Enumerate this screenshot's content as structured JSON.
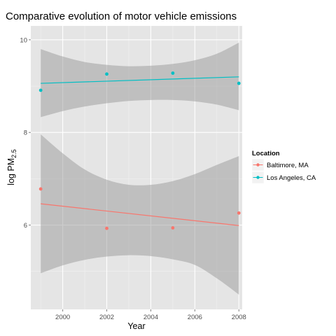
{
  "chart_data": {
    "type": "scatter",
    "title": "Comparative evolution of motor vehicle emissions",
    "xlabel": "Year",
    "ylabel_main": "log PM",
    "ylabel_sub": "2.5",
    "xlim": [
      1998.55,
      2008.15
    ],
    "ylim": [
      4.18,
      10.3
    ],
    "x_ticks": [
      2000,
      2002,
      2004,
      2006,
      2008
    ],
    "x_tick_labels": [
      "2000",
      "2002",
      "2004",
      "2006",
      "2008"
    ],
    "y_ticks": [
      6,
      8,
      10
    ],
    "y_tick_labels": [
      "6",
      "8",
      "10"
    ],
    "grid": true,
    "legend": {
      "title": "Location",
      "position": "right",
      "entries": [
        "Baltimore, MA",
        "Los Angeles, CA"
      ]
    },
    "series": [
      {
        "name": "Baltimore, MA",
        "color": "#f8766d",
        "x": [
          1999,
          2002,
          2005,
          2008
        ],
        "y": [
          6.78,
          5.93,
          5.94,
          6.26
        ],
        "fit": {
          "x": [
            1999,
            2008
          ],
          "y": [
            6.46,
            5.99
          ]
        },
        "band": {
          "x": [
            1999,
            2000,
            2001,
            2002,
            2003,
            2004,
            2005,
            2006,
            2007,
            2008
          ],
          "upper": [
            7.96,
            7.55,
            7.2,
            6.98,
            6.87,
            6.87,
            6.95,
            7.1,
            7.3,
            7.49
          ],
          "lower": [
            4.96,
            5.13,
            5.25,
            5.32,
            5.35,
            5.33,
            5.26,
            5.14,
            4.85,
            4.5
          ]
        }
      },
      {
        "name": "Los Angeles, CA",
        "color": "#00bfc4",
        "x": [
          1999,
          2002,
          2005,
          2008
        ],
        "y": [
          8.91,
          9.26,
          9.28,
          9.06
        ],
        "fit": {
          "x": [
            1999,
            2008
          ],
          "y": [
            9.06,
            9.2
          ]
        },
        "band": {
          "x": [
            1999,
            2000,
            2001,
            2002,
            2003,
            2004,
            2005,
            2006,
            2007,
            2008
          ],
          "upper": [
            9.8,
            9.64,
            9.52,
            9.46,
            9.43,
            9.44,
            9.48,
            9.56,
            9.7,
            9.94
          ],
          "lower": [
            8.33,
            8.46,
            8.56,
            8.63,
            8.68,
            8.7,
            8.7,
            8.67,
            8.6,
            8.48
          ]
        }
      }
    ]
  }
}
